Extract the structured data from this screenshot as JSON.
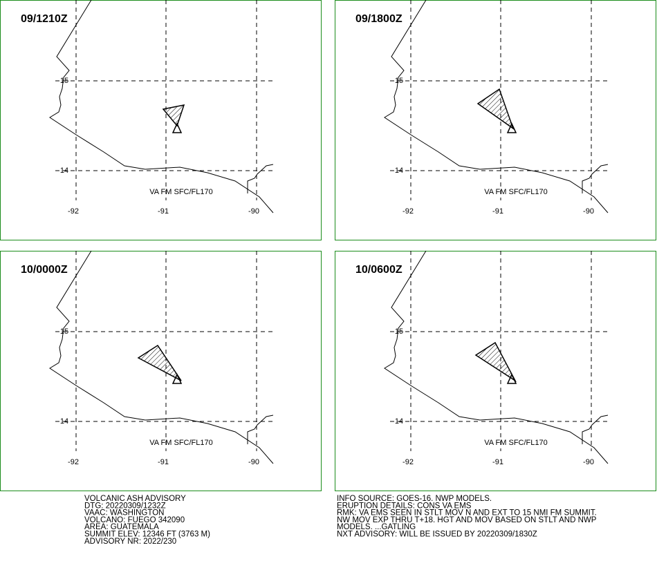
{
  "panels": [
    {
      "time": "09/1210Z",
      "level": "VA FM SFC/FL170"
    },
    {
      "time": "09/1800Z",
      "level": "VA FM SFC/FL170"
    },
    {
      "time": "10/0000Z",
      "level": "VA FM SFC/FL170"
    },
    {
      "time": "10/0600Z",
      "level": "VA FM SFC/FL170"
    }
  ],
  "lat_labels": [
    "15",
    "14"
  ],
  "lon_labels": [
    "-92",
    "-91",
    "-90"
  ],
  "advisory_left": [
    "VOLCANIC ASH ADVISORY",
    "DTG: 20220309/1232Z",
    "VAAC: WASHINGTON",
    "VOLCANO: FUEGO 342090",
    "AREA: GUATEMALA",
    "SUMMIT ELEV: 12346 FT (3763 M)",
    "ADVISORY NR: 2022/230"
  ],
  "advisory_right": [
    "INFO SOURCE: GOES-16. NWP MODELS.",
    "ERUPTION DETAILS: CONS VA EMS",
    "RMK: VA EMS SEEN IN STLT MOV N AND EXT TO 15 NMI FM SUMMIT.",
    "NW MOV EXP THRU T+18. HGT AND MOV BASED ON STLT AND NWP",
    "MODELS. ...GATLING",
    "NXT ADVISORY: WILL BE ISSUED BY 20220309/1830Z"
  ]
}
